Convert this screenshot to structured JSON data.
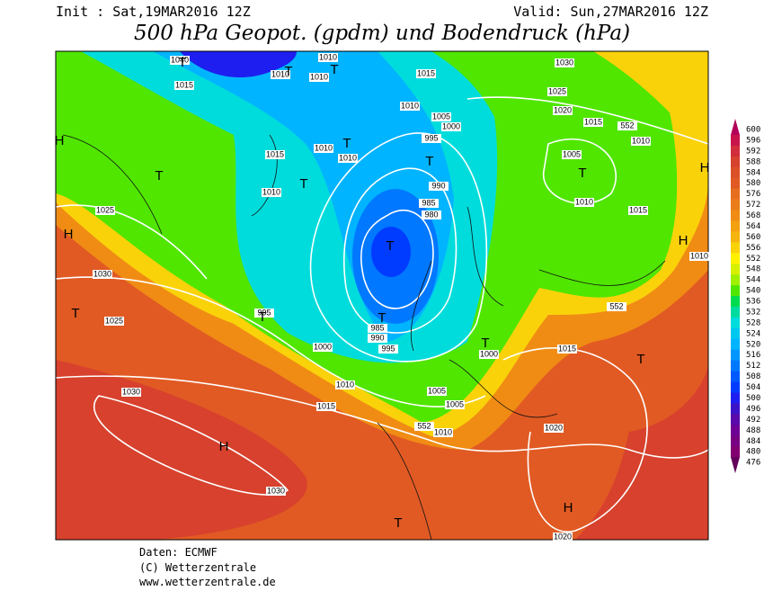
{
  "header": {
    "init": "Init : Sat,19MAR2016 12Z",
    "valid": "Valid: Sun,27MAR2016 12Z",
    "title": "500 hPa Geopot. (gpdm) und Bodendruck (hPa)"
  },
  "colorbar": {
    "levels": [
      600,
      596,
      592,
      588,
      584,
      580,
      576,
      572,
      568,
      564,
      560,
      556,
      552,
      548,
      544,
      540,
      536,
      532,
      528,
      524,
      520,
      516,
      512,
      508,
      504,
      500,
      496,
      492,
      488,
      484,
      480,
      476
    ],
    "colors": [
      "#b4005a",
      "#c8144b",
      "#d22d3c",
      "#d7412d",
      "#dc5028",
      "#e15a23",
      "#e66e1e",
      "#eb7d19",
      "#f08c14",
      "#f5a00f",
      "#f5b40f",
      "#fad20a",
      "#fff000",
      "#d7f000",
      "#a0f000",
      "#50e600",
      "#00dc50",
      "#00dca0",
      "#00dcdc",
      "#00c8f0",
      "#00b4ff",
      "#0096ff",
      "#0078ff",
      "#005aff",
      "#003cff",
      "#1e1ef0",
      "#3c14c8",
      "#5a0aaa",
      "#6e0096",
      "#780082",
      "#820070",
      "#64005a"
    ]
  },
  "map": {
    "pressure_labels": [
      "1040",
      "1010",
      "1010",
      "1010",
      "1015",
      "1030",
      "1015",
      "1025",
      "1010",
      "1005",
      "1020",
      "1015",
      "552",
      "1000",
      "995",
      "1010",
      "1015",
      "1010",
      "1010",
      "1005",
      "990",
      "1010",
      "985",
      "1010",
      "1025",
      "980",
      "1015",
      "1030",
      "1010",
      "995",
      "552",
      "1025",
      "985",
      "990",
      "1000",
      "995",
      "1015",
      "1000",
      "1010",
      "1005",
      "1030",
      "1015",
      "1005",
      "552",
      "1010",
      "1020",
      "1030",
      "1020"
    ],
    "centers": [
      "H",
      "T",
      "H",
      "T",
      "T",
      "T",
      "T",
      "T",
      "T",
      "T",
      "T",
      "T",
      "T",
      "T",
      "T",
      "H",
      "H",
      "T",
      "H",
      "T",
      "H"
    ]
  },
  "footer": {
    "source": "Daten: ECMWF",
    "copyright": "(C) Wetterzentrale",
    "url": "www.wetterzentrale.de"
  }
}
